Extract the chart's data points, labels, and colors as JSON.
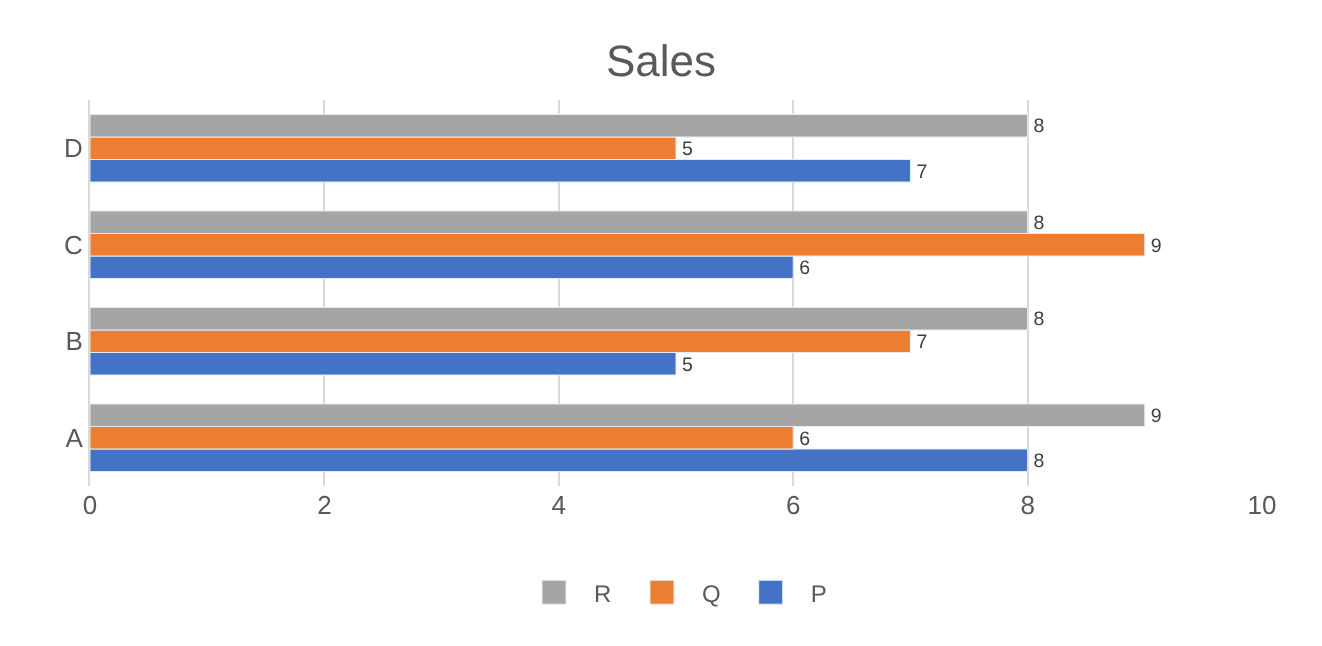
{
  "chart_data": {
    "type": "bar",
    "orientation": "horizontal",
    "title": "Sales",
    "categories": [
      "D",
      "C",
      "B",
      "A"
    ],
    "series": [
      {
        "name": "P",
        "color": "#4472c4",
        "values": [
          7,
          6,
          5,
          8
        ]
      },
      {
        "name": "Q",
        "color": "#ed7d31",
        "values": [
          5,
          9,
          7,
          6
        ]
      },
      {
        "name": "R",
        "color": "#a5a5a5",
        "values": [
          8,
          8,
          8,
          9
        ]
      }
    ],
    "xlim": [
      0,
      10
    ],
    "xticks": [
      0,
      2,
      4,
      6,
      8,
      10
    ],
    "grid": "x",
    "legend": "bottom",
    "data_labels": true
  }
}
